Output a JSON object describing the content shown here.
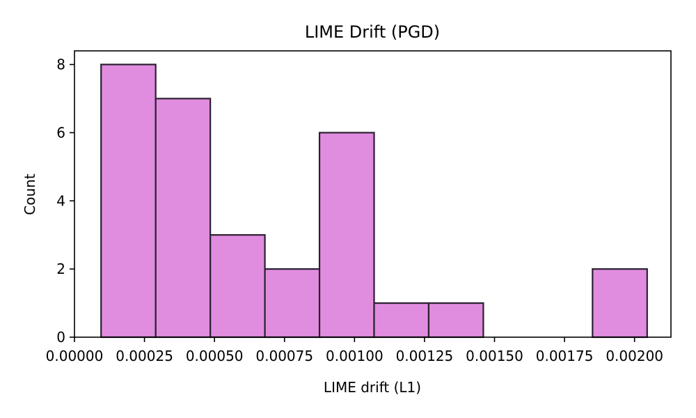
{
  "chart_data": {
    "type": "bar",
    "title": "LIME Drift (PGD)",
    "xlabel": "LIME drift (L1)",
    "ylabel": "Count",
    "xlim": [
      0.0,
      0.00213
    ],
    "ylim": [
      0,
      8.4
    ],
    "x_ticks": [
      0.0,
      0.00025,
      0.0005,
      0.00075,
      0.001,
      0.00125,
      0.0015,
      0.00175,
      0.002
    ],
    "x_tick_labels": [
      "0.00000",
      "0.00025",
      "0.00050",
      "0.00075",
      "0.00100",
      "0.00125",
      "0.00150",
      "0.00175",
      "0.00200"
    ],
    "y_ticks": [
      0,
      2,
      4,
      6,
      8
    ],
    "y_tick_labels": [
      "0",
      "2",
      "4",
      "6",
      "8"
    ],
    "bin_edges": [
      9.5e-05,
      0.00029,
      0.000485,
      0.00068,
      0.000875,
      0.00107,
      0.001265,
      0.00146,
      0.001655,
      0.00185,
      0.002045
    ],
    "counts": [
      8,
      7,
      3,
      2,
      6,
      1,
      1,
      0,
      0,
      2
    ],
    "grid": false,
    "bar_color": "#e08ddf",
    "edge_color": "#2b2030"
  }
}
